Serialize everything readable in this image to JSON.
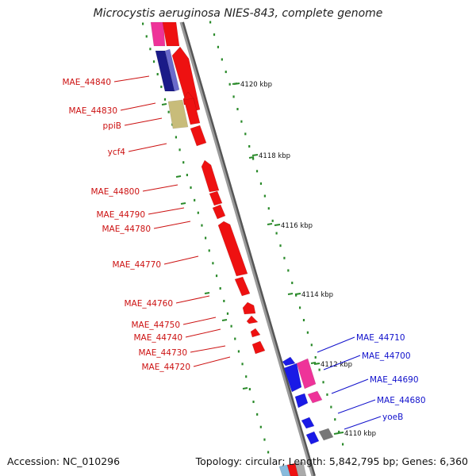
{
  "title": "Microcystis aeruginosa NIES-843, complete genome",
  "footer": {
    "accession": "Accession: NC_010296",
    "summary": "Topology: circular; Length: 5,842,795 bp; Genes: 6,360"
  },
  "colors": {
    "backbone": "#8c8c8c",
    "gc_dots": "#2a8a2a",
    "gene_red": "#ee1111",
    "label_red": "#cc1111",
    "label_blue": "#1111cc",
    "cds_blue": "#1a1ae6",
    "cds_navy": "#1a1a88",
    "cds_pink": "#ee3399",
    "cds_tan": "#c8bc7a",
    "cds_gray": "#777777"
  },
  "ticks": [
    {
      "label": "4120 kbp"
    },
    {
      "label": "4118 kbp"
    },
    {
      "label": "4116 kbp"
    },
    {
      "label": "4114 kbp"
    },
    {
      "label": "4112 kbp"
    },
    {
      "label": "4110 kbp"
    }
  ],
  "left_labels": [
    {
      "text": "MAE_44840"
    },
    {
      "text": "MAE_44830"
    },
    {
      "text": "ppiB"
    },
    {
      "text": "ycf4"
    },
    {
      "text": "MAE_44800"
    },
    {
      "text": "MAE_44790"
    },
    {
      "text": "MAE_44780"
    },
    {
      "text": "MAE_44770"
    },
    {
      "text": "MAE_44760"
    },
    {
      "text": "MAE_44750"
    },
    {
      "text": "MAE_44740"
    },
    {
      "text": "MAE_44730"
    },
    {
      "text": "MAE_44720"
    }
  ],
  "right_labels": [
    {
      "text": "MAE_44710"
    },
    {
      "text": "MAE_44700"
    },
    {
      "text": "MAE_44690"
    },
    {
      "text": "MAE_44680"
    },
    {
      "text": "yoeB"
    }
  ]
}
